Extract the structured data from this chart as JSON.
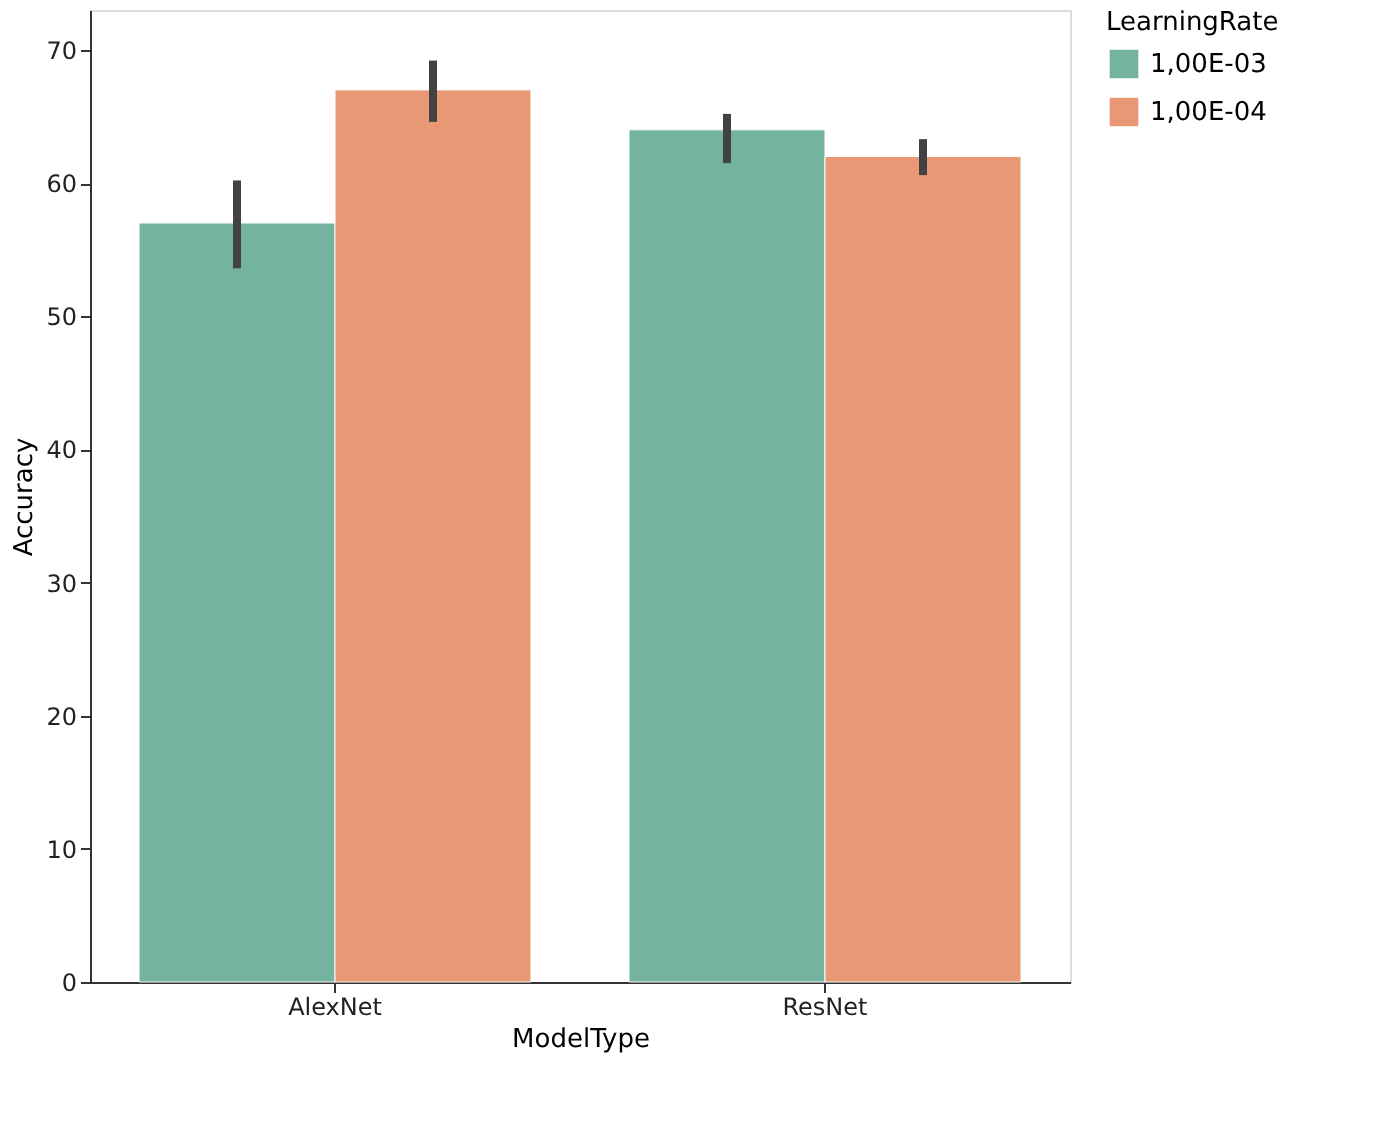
{
  "chart_data": {
    "type": "bar",
    "xlabel": "ModelType",
    "ylabel": "Accuracy",
    "legend_title": "LearningRate",
    "legend": "right",
    "grid": false,
    "categories": [
      "AlexNet",
      "ResNet"
    ],
    "series": [
      {
        "name": "1,00E-03",
        "color": "#73b3a0",
        "values": [
          57,
          64
        ],
        "errors": [
          [
            53.6,
            60.2
          ],
          [
            61.5,
            65.2
          ]
        ]
      },
      {
        "name": "1,00E-04",
        "color": "#e89874",
        "values": [
          67,
          62
        ],
        "errors": [
          [
            64.6,
            69.2
          ],
          [
            60.6,
            63.3
          ]
        ]
      }
    ],
    "ylim": [
      0,
      73
    ],
    "yticks": [
      0,
      10,
      20,
      30,
      40,
      50,
      60,
      70
    ]
  }
}
